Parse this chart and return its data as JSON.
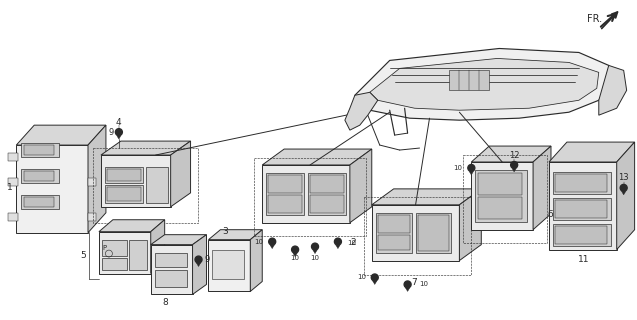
{
  "bg_color": "#ffffff",
  "line_color": "#2a2a2a",
  "fig_width": 6.37,
  "fig_height": 3.2,
  "dpi": 100
}
